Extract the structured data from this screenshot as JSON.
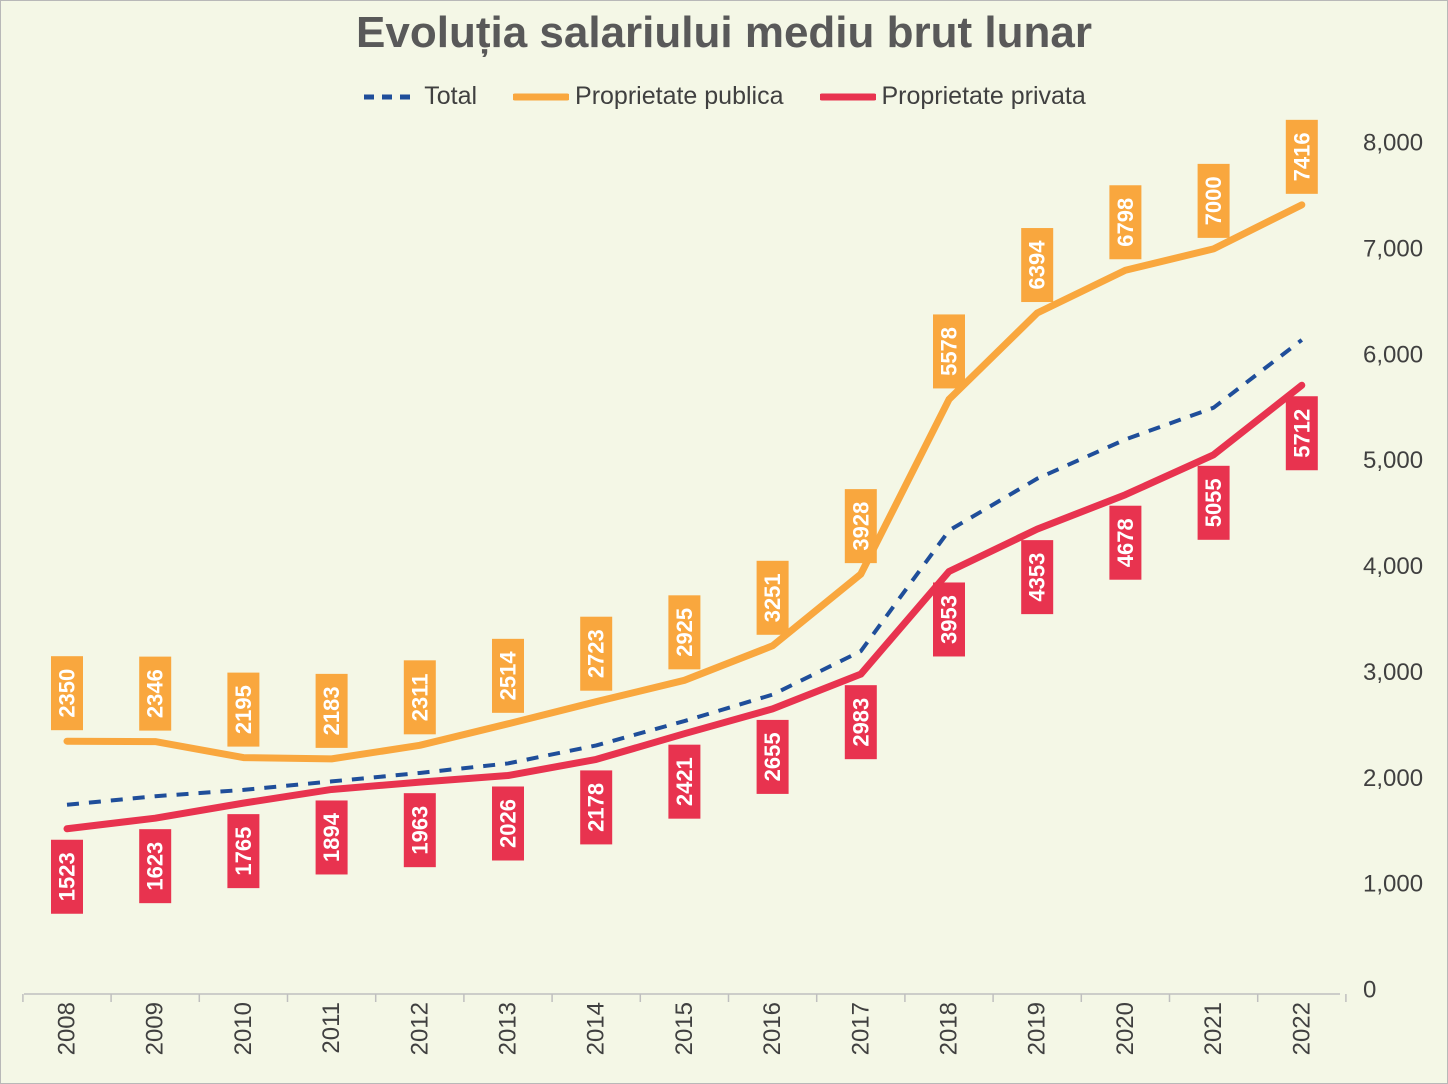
{
  "chart_data": {
    "type": "line",
    "title": "Evoluția salariului mediu brut lunar",
    "xlabel": "",
    "ylabel": "",
    "categories": [
      "2008",
      "2009",
      "2010",
      "2011",
      "2012",
      "2013",
      "2014",
      "2015",
      "2016",
      "2017",
      "2018",
      "2019",
      "2020",
      "2021",
      "2022"
    ],
    "ylim": [
      0,
      8000
    ],
    "yticks": [
      0,
      1000,
      2000,
      3000,
      4000,
      5000,
      6000,
      7000,
      8000
    ],
    "ytick_labels": [
      "0",
      "1,000",
      "2,000",
      "3,000",
      "4,000",
      "5,000",
      "6,000",
      "7,000",
      "8,000"
    ],
    "y_axis_side": "right",
    "grid": false,
    "legend_position": "top",
    "series": [
      {
        "name": "Total",
        "color": "#1f4e9a",
        "style": "dashed",
        "values": [
          1750,
          1830,
          1890,
          1970,
          2050,
          2140,
          2310,
          2540,
          2790,
          3200,
          4340,
          4830,
          5200,
          5500,
          6140
        ],
        "data_labels": false
      },
      {
        "name": "Proprietate publica",
        "color": "#f9a73e",
        "style": "solid",
        "values": [
          2350,
          2346,
          2195,
          2183,
          2311,
          2514,
          2723,
          2925,
          3251,
          3928,
          5578,
          6394,
          6798,
          7000,
          7416
        ],
        "data_labels": true,
        "label_position": "above"
      },
      {
        "name": "Proprietate privata",
        "color": "#e8334f",
        "style": "solid",
        "values": [
          1523,
          1623,
          1765,
          1894,
          1963,
          2026,
          2178,
          2421,
          2655,
          2983,
          3953,
          4353,
          4678,
          5055,
          5712
        ],
        "data_labels": true,
        "label_position": "below"
      }
    ]
  }
}
